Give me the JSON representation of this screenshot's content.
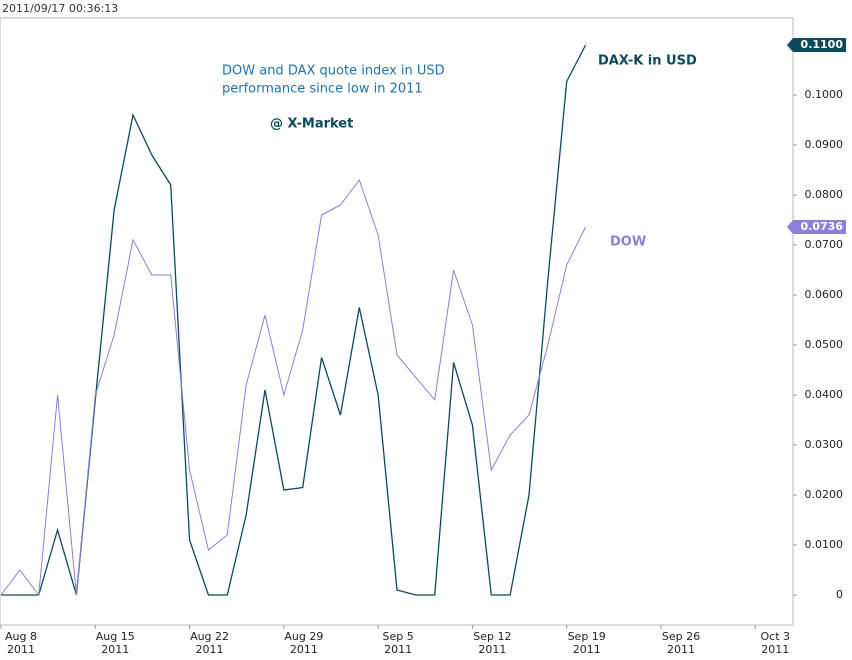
{
  "timestamp": "2011/09/17 00:36:13",
  "chart_data": {
    "type": "line",
    "title": [
      "DOW and DAX quote index in USD",
      "performance since low in 2011"
    ],
    "annotation": "@ X-Market",
    "x": [
      "2011-08-08",
      "2011-08-09",
      "2011-08-10",
      "2011-08-11",
      "2011-08-12",
      "2011-08-15",
      "2011-08-16",
      "2011-08-17",
      "2011-08-18",
      "2011-08-19",
      "2011-08-22",
      "2011-08-23",
      "2011-08-24",
      "2011-08-25",
      "2011-08-26",
      "2011-08-29",
      "2011-08-30",
      "2011-08-31",
      "2011-09-01",
      "2011-09-02",
      "2011-09-05",
      "2011-09-06",
      "2011-09-07",
      "2011-09-08",
      "2011-09-09",
      "2011-09-12",
      "2011-09-13",
      "2011-09-14",
      "2011-09-15",
      "2011-09-16",
      "2011-09-19",
      "2011-09-20"
    ],
    "series": [
      {
        "name": "DAX-K in USD",
        "color": "#0b4a5c",
        "values": [
          0,
          0,
          0,
          0.013,
          0,
          0.039,
          0.077,
          0.096,
          0.088,
          0.082,
          0.011,
          0,
          0,
          0.016,
          0.041,
          0.021,
          0.0215,
          0.0475,
          0.036,
          0.0575,
          0.04,
          0.001,
          0,
          0,
          0.0465,
          0.034,
          0,
          0,
          0.02,
          0.063,
          0.1027,
          0.11
        ],
        "value_labels": [
          null,
          null,
          null,
          null,
          null,
          null,
          null,
          null,
          null,
          null,
          null,
          null,
          null,
          null,
          null,
          null,
          null,
          null,
          null,
          null,
          null,
          null,
          null,
          null,
          null,
          null,
          null,
          null,
          null,
          null,
          null,
          "0.1100"
        ]
      },
      {
        "name": "DOW",
        "color": "#8a80d8",
        "values": [
          0,
          0.005,
          0,
          0.04,
          0,
          0.04,
          0.052,
          0.071,
          0.064,
          0.064,
          0.025,
          0.009,
          0.012,
          0.042,
          0.056,
          0.04,
          0.053,
          0.076,
          0.078,
          0.083,
          0.072,
          0.048,
          0.0435,
          0.039,
          0.065,
          0.054,
          0.025,
          0.032,
          0.036,
          0.05,
          0.066,
          0.0736
        ],
        "value_labels": [
          null,
          null,
          null,
          null,
          null,
          null,
          null,
          null,
          null,
          null,
          null,
          null,
          null,
          null,
          null,
          null,
          null,
          null,
          null,
          null,
          null,
          null,
          null,
          null,
          null,
          null,
          null,
          null,
          null,
          null,
          null,
          "0.0736"
        ]
      }
    ],
    "xlim": [
      "2011-08-08",
      "2011-10-05"
    ],
    "xticks": [
      {
        "value": "2011-08-08",
        "label": "Aug 8\n2011"
      },
      {
        "value": "2011-08-15",
        "label": "Aug 15\n2011"
      },
      {
        "value": "2011-08-22",
        "label": "Aug 22\n2011"
      },
      {
        "value": "2011-08-29",
        "label": "Aug 29\n2011"
      },
      {
        "value": "2011-09-05",
        "label": "Sep 5\n2011"
      },
      {
        "value": "2011-09-12",
        "label": "Sep 12\n2011"
      },
      {
        "value": "2011-09-19",
        "label": "Sep 19\n2011"
      },
      {
        "value": "2011-09-26",
        "label": "Sep 26\n2011"
      },
      {
        "value": "2011-10-03",
        "label": "Oct 3\n2011"
      }
    ],
    "ylim": [
      -0.006,
      0.1154
    ],
    "yticks": [
      0,
      {
        "value": 0.01,
        "label": "0.0100"
      },
      {
        "value": 0.02,
        "label": "0.0200"
      },
      {
        "value": 0.03,
        "label": "0.0300"
      },
      {
        "value": 0.04,
        "label": "0.0400"
      },
      {
        "value": 0.05,
        "label": "0.0500"
      },
      {
        "value": 0.06,
        "label": "0.0600"
      },
      {
        "value": 0.07,
        "label": "0.0700"
      },
      {
        "value": 0.08,
        "label": "0.0800"
      },
      {
        "value": 0.09,
        "label": "0.0900"
      },
      {
        "value": 0.1,
        "label": "0.1000"
      }
    ],
    "grid": false
  }
}
